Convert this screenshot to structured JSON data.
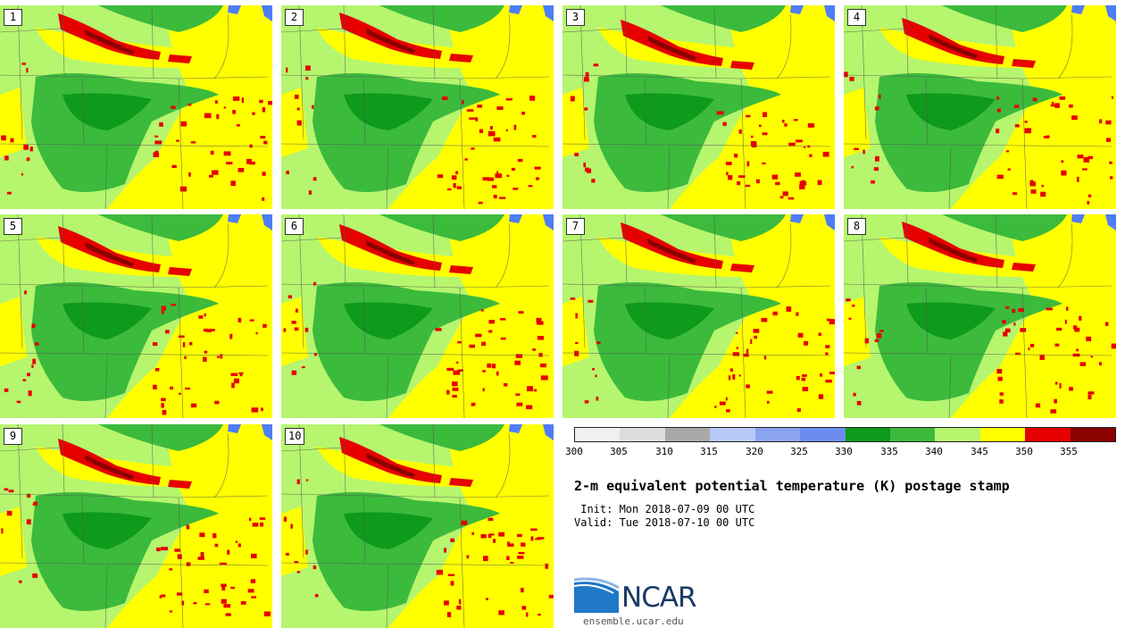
{
  "panels": [
    {
      "label": "1"
    },
    {
      "label": "2"
    },
    {
      "label": "3"
    },
    {
      "label": "4"
    },
    {
      "label": "5"
    },
    {
      "label": "6"
    },
    {
      "label": "7"
    },
    {
      "label": "8"
    },
    {
      "label": "9"
    },
    {
      "label": "10"
    }
  ],
  "colorbar": {
    "colors": [
      "#f0f0f0",
      "#dcdcdc",
      "#a9a9a9",
      "#b8c8f8",
      "#8aa4f0",
      "#6d8cf0",
      "#0e9a1a",
      "#3cba3c",
      "#b6f56e",
      "#ffff00",
      "#e60000",
      "#8b0000"
    ],
    "ticks": [
      "300",
      "305",
      "310",
      "315",
      "320",
      "325",
      "330",
      "335",
      "340",
      "345",
      "350",
      "355"
    ]
  },
  "title": "2-m equivalent potential temperature (K) postage stamp",
  "init_line": " Init: Mon 2018-07-09 00 UTC",
  "valid_line": "Valid: Tue 2018-07-10 00 UTC",
  "logo": {
    "name": "NCAR",
    "url": "ensemble.ucar.edu"
  },
  "map_colors": {
    "base": "#b6f56e",
    "green": "#3cba3c",
    "dark_green": "#0e9a1a",
    "yellow": "#ffff00",
    "red": "#e60000",
    "dark_red": "#8b0000",
    "water": "#4f7cf7",
    "border": "#555555"
  }
}
